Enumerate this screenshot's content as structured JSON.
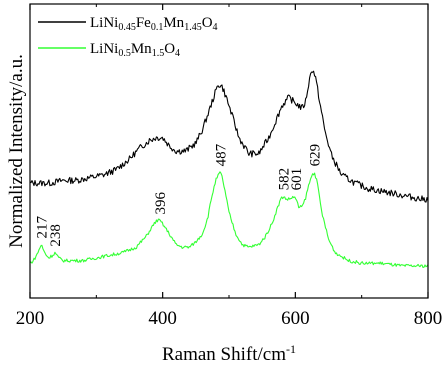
{
  "chart_data": {
    "type": "line",
    "xlabel_main": "Raman Shift/cm",
    "xlabel_sup": "-1",
    "ylabel": "Normalized Intensity/a.u.",
    "xlim": [
      200,
      800
    ],
    "x_ticks": [
      200,
      400,
      600,
      800
    ],
    "x_tick_labels": [
      "200",
      "400",
      "600",
      "800"
    ],
    "y_ticks_labels": false,
    "grid": false,
    "legend_position": "top-left",
    "series": [
      {
        "name": "LiNi0.45Fe0.1Mn1.45O4",
        "name_parts": [
          {
            "t": "LiNi",
            "sub": false
          },
          {
            "t": "0.45",
            "sub": true
          },
          {
            "t": "Fe",
            "sub": false
          },
          {
            "t": "0.1",
            "sub": true
          },
          {
            "t": "Mn",
            "sub": false
          },
          {
            "t": "1.45",
            "sub": true
          },
          {
            "t": "O",
            "sub": false
          },
          {
            "t": "4",
            "sub": true
          }
        ],
        "color": "#000000",
        "x": [
          210,
          230,
          250,
          270,
          290,
          310,
          330,
          350,
          365,
          380,
          390,
          400,
          410,
          420,
          435,
          450,
          460,
          470,
          478,
          484,
          490,
          496,
          505,
          515,
          530,
          545,
          560,
          570,
          580,
          590,
          600,
          610,
          615,
          620,
          625,
          630,
          637,
          645,
          655,
          670,
          690,
          710,
          730,
          750,
          770,
          790,
          800
        ],
        "y": [
          0.33,
          0.33,
          0.34,
          0.34,
          0.35,
          0.36,
          0.38,
          0.42,
          0.46,
          0.49,
          0.5,
          0.5,
          0.47,
          0.45,
          0.45,
          0.48,
          0.53,
          0.6,
          0.66,
          0.7,
          0.69,
          0.65,
          0.58,
          0.5,
          0.44,
          0.44,
          0.5,
          0.56,
          0.62,
          0.65,
          0.63,
          0.61,
          0.63,
          0.7,
          0.76,
          0.73,
          0.63,
          0.52,
          0.43,
          0.36,
          0.33,
          0.31,
          0.3,
          0.29,
          0.28,
          0.27,
          0.27
        ]
      },
      {
        "name": "LiNi0.5Mn1.5O4",
        "name_parts": [
          {
            "t": "LiNi",
            "sub": false
          },
          {
            "t": "0.5",
            "sub": true
          },
          {
            "t": "Mn",
            "sub": false
          },
          {
            "t": "1.5",
            "sub": true
          },
          {
            "t": "O",
            "sub": false
          },
          {
            "t": "4",
            "sub": true
          }
        ],
        "color": "#33ff33",
        "x": [
          200,
          205,
          210,
          217,
          222,
          228,
          234,
          238,
          243,
          250,
          265,
          280,
          300,
          320,
          340,
          360,
          375,
          385,
          391,
          396,
          402,
          410,
          420,
          430,
          440,
          450,
          460,
          468,
          474,
          480,
          484,
          487,
          490,
          494,
          500,
          510,
          520,
          530,
          545,
          555,
          565,
          572,
          578,
          582,
          586,
          592,
          597,
          601,
          605,
          610,
          615,
          620,
          625,
          629,
          633,
          640,
          650,
          660,
          680,
          700,
          730,
          760,
          790,
          800
        ],
        "y": [
          0.03,
          0.04,
          0.06,
          0.1,
          0.07,
          0.05,
          0.06,
          0.07,
          0.05,
          0.04,
          0.04,
          0.04,
          0.05,
          0.06,
          0.07,
          0.09,
          0.13,
          0.17,
          0.19,
          0.19,
          0.17,
          0.14,
          0.1,
          0.09,
          0.09,
          0.11,
          0.14,
          0.2,
          0.28,
          0.34,
          0.36,
          0.37,
          0.35,
          0.3,
          0.22,
          0.14,
          0.1,
          0.09,
          0.1,
          0.13,
          0.18,
          0.23,
          0.27,
          0.28,
          0.27,
          0.27,
          0.28,
          0.27,
          0.24,
          0.24,
          0.27,
          0.32,
          0.36,
          0.37,
          0.33,
          0.22,
          0.12,
          0.07,
          0.04,
          0.03,
          0.03,
          0.02,
          0.02,
          0.02
        ]
      }
    ],
    "annotations": [
      {
        "label": "217",
        "x": 217,
        "y": 0.1
      },
      {
        "label": "238",
        "x": 238,
        "y": 0.07
      },
      {
        "label": "396",
        "x": 396,
        "y": 0.19
      },
      {
        "label": "487",
        "x": 487,
        "y": 0.37
      },
      {
        "label": "582",
        "x": 582,
        "y": 0.28
      },
      {
        "label": "601",
        "x": 601,
        "y": 0.28
      },
      {
        "label": "629",
        "x": 629,
        "y": 0.37
      }
    ]
  }
}
